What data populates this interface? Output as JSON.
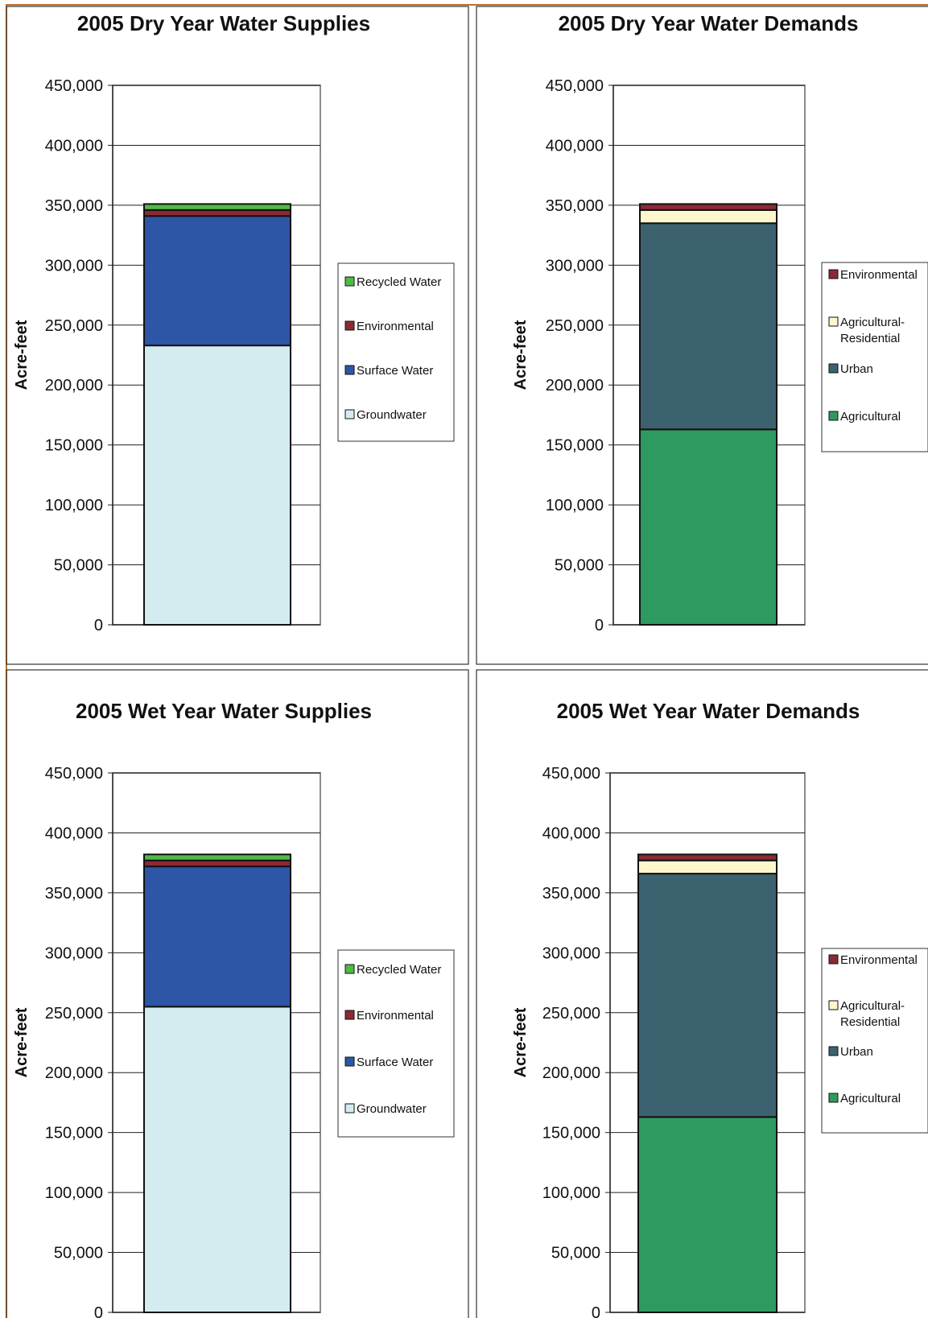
{
  "colors": {
    "frame": "#c0722a",
    "recycled_water": "#52b947",
    "environmental": "#8b2a35",
    "surface_water": "#2e56a6",
    "groundwater": "#d4ecf0",
    "agricultural_residential": "#fdf8cc",
    "urban": "#3c6270",
    "agricultural": "#2f9a60"
  },
  "chart_data": [
    {
      "type": "bar",
      "stacked": true,
      "title": "2005 Dry Year Water Supplies",
      "xlabel": "",
      "ylabel": "Acre-feet",
      "ylim": [
        0,
        450000
      ],
      "yticks": [
        0,
        50000,
        100000,
        150000,
        200000,
        250000,
        300000,
        350000,
        400000,
        450000
      ],
      "ytick_labels": [
        "0",
        "50,000",
        "100,000",
        "150,000",
        "200,000",
        "250,000",
        "300,000",
        "350,000",
        "400,000",
        "450,000"
      ],
      "grid": true,
      "legend_position": "right",
      "categories": [
        ""
      ],
      "series": [
        {
          "name": "Groundwater",
          "color_key": "groundwater",
          "values": [
            233000
          ]
        },
        {
          "name": "Surface Water",
          "color_key": "surface_water",
          "values": [
            108000
          ]
        },
        {
          "name": "Environmental",
          "color_key": "environmental",
          "values": [
            5000
          ]
        },
        {
          "name": "Recycled Water",
          "color_key": "recycled_water",
          "values": [
            5000
          ]
        }
      ],
      "legend": [
        {
          "label": "Recycled Water",
          "color_key": "recycled_water"
        },
        {
          "label": "Environmental",
          "color_key": "environmental"
        },
        {
          "label": "Surface Water",
          "color_key": "surface_water"
        },
        {
          "label": "Groundwater",
          "color_key": "groundwater"
        }
      ]
    },
    {
      "type": "bar",
      "stacked": true,
      "title": "2005 Dry Year Water Demands",
      "xlabel": "",
      "ylabel": "Acre-feet",
      "ylim": [
        0,
        450000
      ],
      "yticks": [
        0,
        50000,
        100000,
        150000,
        200000,
        250000,
        300000,
        350000,
        400000,
        450000
      ],
      "ytick_labels": [
        "0",
        "50,000",
        "100,000",
        "150,000",
        "200,000",
        "250,000",
        "300,000",
        "350,000",
        "400,000",
        "450,000"
      ],
      "grid": true,
      "legend_position": "right",
      "categories": [
        ""
      ],
      "series": [
        {
          "name": "Agricultural",
          "color_key": "agricultural",
          "values": [
            163000
          ]
        },
        {
          "name": "Urban",
          "color_key": "urban",
          "values": [
            172000
          ]
        },
        {
          "name": "Agricultural-Residential",
          "color_key": "agricultural_residential",
          "values": [
            11000
          ]
        },
        {
          "name": "Environmental",
          "color_key": "environmental",
          "values": [
            5000
          ]
        }
      ],
      "legend": [
        {
          "label": "Environmental",
          "color_key": "environmental"
        },
        {
          "label": "Agricultural-",
          "label2": "Residential",
          "color_key": "agricultural_residential"
        },
        {
          "label": "Urban",
          "color_key": "urban"
        },
        {
          "label": "Agricultural",
          "color_key": "agricultural"
        }
      ]
    },
    {
      "type": "bar",
      "stacked": true,
      "title": "2005 Wet Year Water Supplies",
      "xlabel": "",
      "ylabel": "Acre-feet",
      "ylim": [
        0,
        450000
      ],
      "yticks": [
        0,
        50000,
        100000,
        150000,
        200000,
        250000,
        300000,
        350000,
        400000,
        450000
      ],
      "ytick_labels": [
        "0",
        "50,000",
        "100,000",
        "150,000",
        "200,000",
        "250,000",
        "300,000",
        "350,000",
        "400,000",
        "450,000"
      ],
      "grid": true,
      "legend_position": "right",
      "categories": [
        ""
      ],
      "series": [
        {
          "name": "Groundwater",
          "color_key": "groundwater",
          "values": [
            255000
          ]
        },
        {
          "name": "Surface Water",
          "color_key": "surface_water",
          "values": [
            117000
          ]
        },
        {
          "name": "Environmental",
          "color_key": "environmental",
          "values": [
            5000
          ]
        },
        {
          "name": "Recycled Water",
          "color_key": "recycled_water",
          "values": [
            5000
          ]
        }
      ],
      "legend": [
        {
          "label": "Recycled Water",
          "color_key": "recycled_water"
        },
        {
          "label": "Environmental",
          "color_key": "environmental"
        },
        {
          "label": "Surface Water",
          "color_key": "surface_water"
        },
        {
          "label": "Groundwater",
          "color_key": "groundwater"
        }
      ]
    },
    {
      "type": "bar",
      "stacked": true,
      "title": "2005 Wet Year Water Demands",
      "xlabel": "",
      "ylabel": "Acre-feet",
      "ylim": [
        0,
        450000
      ],
      "yticks": [
        0,
        50000,
        100000,
        150000,
        200000,
        250000,
        300000,
        350000,
        400000,
        450000
      ],
      "ytick_labels": [
        "0",
        "50,000",
        "100,000",
        "150,000",
        "200,000",
        "250,000",
        "300,000",
        "350,000",
        "400,000",
        "450,000"
      ],
      "grid": true,
      "legend_position": "right",
      "categories": [
        ""
      ],
      "series": [
        {
          "name": "Agricultural",
          "color_key": "agricultural",
          "values": [
            163000
          ]
        },
        {
          "name": "Urban",
          "color_key": "urban",
          "values": [
            203000
          ]
        },
        {
          "name": "Agricultural-Residential",
          "color_key": "agricultural_residential",
          "values": [
            11000
          ]
        },
        {
          "name": "Environmental",
          "color_key": "environmental",
          "values": [
            5000
          ]
        }
      ],
      "legend": [
        {
          "label": "Environmental",
          "color_key": "environmental"
        },
        {
          "label": "Agricultural-",
          "label2": "Residential",
          "color_key": "agricultural_residential"
        },
        {
          "label": "Urban",
          "color_key": "urban"
        },
        {
          "label": "Agricultural",
          "color_key": "agricultural"
        }
      ]
    }
  ]
}
